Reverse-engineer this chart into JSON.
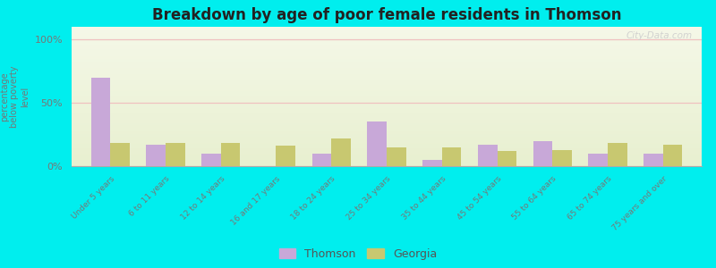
{
  "title": "Breakdown by age of poor female residents in Thomson",
  "ylabel": "percentage\nbelow poverty\nlevel",
  "background_color": "#00eeee",
  "categories": [
    "Under 5 years",
    "6 to 11 years",
    "12 to 14 years",
    "16 and 17 years",
    "18 to 24 years",
    "25 to 34 years",
    "35 to 44 years",
    "45 to 54 years",
    "55 to 64 years",
    "65 to 74 years",
    "75 years and over"
  ],
  "thomson_values": [
    70,
    17,
    10,
    0,
    10,
    35,
    5,
    17,
    20,
    10,
    10
  ],
  "georgia_values": [
    18,
    18,
    18,
    16,
    22,
    15,
    15,
    12,
    13,
    18,
    17
  ],
  "thomson_color": "#c8a8d8",
  "georgia_color": "#c8c870",
  "yticks": [
    0,
    50,
    100
  ],
  "ytick_labels": [
    "0%",
    "50%",
    "100%"
  ],
  "ylim": [
    0,
    110
  ],
  "bar_width": 0.35,
  "legend_labels": [
    "Thomson",
    "Georgia"
  ],
  "watermark": "City-Data.com",
  "plot_bg_top": "#f5f8e8",
  "plot_bg_bottom": "#e8f0d0"
}
